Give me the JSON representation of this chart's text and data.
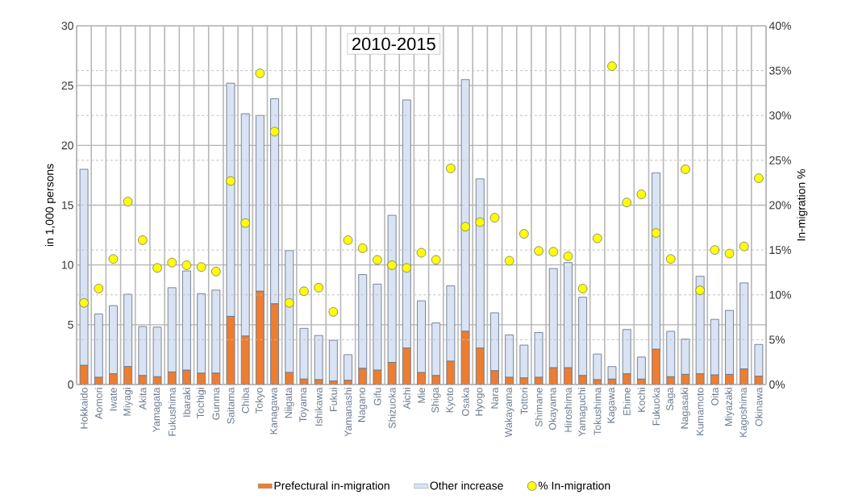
{
  "chart_data": {
    "type": "bar",
    "title": "2010-2015",
    "ylabel": "in 1,000 persons",
    "y2label": "In-migration %",
    "categories": [
      "Hokkaido",
      "Aomori",
      "Iwate",
      "Miyagi",
      "Akita",
      "Yamagata",
      "Fukushima",
      "Ibaraki",
      "Tochigi",
      "Gunma",
      "Saitama",
      "Chiba",
      "Tokyo",
      "Kanagawa",
      "Niigata",
      "Toyama",
      "Ishikawa",
      "Fukui",
      "Yamanashi",
      "Nagano",
      "Gifu",
      "Shizuoka",
      "Aichi",
      "Mie",
      "Shiga",
      "Kyoto",
      "Osaka",
      "Hyogo",
      "Nara",
      "Wakayama",
      "Tottori",
      "Shimane",
      "Okayama",
      "Hiroshima",
      "Yamaguchi",
      "Tokushima",
      "Kagawa",
      "Ehime",
      "Kochi",
      "Fukuoka",
      "Saga",
      "Nagasaki",
      "Kumamoto",
      "Oita",
      "Miyazaki",
      "Kagoshima",
      "Okinawa"
    ],
    "stacked": true,
    "series": [
      {
        "name": "Prefectural in-migration",
        "color": "#ed7d31",
        "values": [
          1.6,
          0.6,
          0.9,
          1.5,
          0.75,
          0.65,
          1.05,
          1.2,
          0.95,
          0.95,
          5.7,
          4.05,
          7.8,
          6.75,
          1.0,
          0.45,
          0.4,
          0.3,
          0.35,
          1.35,
          1.2,
          1.85,
          3.05,
          1.0,
          0.75,
          1.95,
          4.45,
          3.05,
          1.15,
          0.6,
          0.55,
          0.6,
          1.4,
          1.4,
          0.75,
          0.4,
          0.45,
          0.9,
          0.45,
          2.95,
          0.65,
          0.85,
          0.9,
          0.8,
          0.85,
          1.3,
          0.7
        ]
      },
      {
        "name": "Other increase",
        "color": "#dae3f3",
        "values": [
          16.4,
          5.3,
          5.7,
          6.05,
          4.1,
          4.15,
          7.05,
          8.3,
          6.65,
          6.95,
          19.5,
          18.6,
          14.7,
          17.15,
          10.2,
          4.25,
          3.7,
          3.4,
          2.15,
          7.85,
          7.2,
          12.3,
          20.75,
          6.0,
          4.4,
          6.3,
          21.05,
          14.15,
          4.85,
          3.55,
          2.75,
          3.75,
          8.3,
          8.8,
          6.55,
          2.15,
          1.05,
          3.7,
          1.85,
          14.75,
          3.8,
          2.95,
          8.15,
          4.65,
          5.35,
          7.2,
          2.65
        ]
      },
      {
        "name": "% In-migration",
        "type": "scatter",
        "axis": "y2",
        "color": "#ffff00",
        "values": [
          9.1,
          10.7,
          14.0,
          20.4,
          16.1,
          13.0,
          13.6,
          13.3,
          13.1,
          12.6,
          22.7,
          18.0,
          34.7,
          28.2,
          9.1,
          10.4,
          10.8,
          8.1,
          16.1,
          15.2,
          13.9,
          13.3,
          13.0,
          14.7,
          13.9,
          24.1,
          17.6,
          18.1,
          18.6,
          13.8,
          16.8,
          14.9,
          14.8,
          14.3,
          10.7,
          16.3,
          35.5,
          20.3,
          21.2,
          16.9,
          14.0,
          24.0,
          10.5,
          15.0,
          14.6,
          15.4,
          23.0
        ]
      }
    ],
    "ylim": [
      0,
      30
    ],
    "yticks": [
      0,
      5,
      10,
      15,
      20,
      25,
      30
    ],
    "y2lim": [
      0,
      40
    ],
    "y2ticks": [
      {
        "value": 0,
        "label": "0%"
      },
      {
        "value": 5,
        "label": "5%"
      },
      {
        "value": 10,
        "label": "10%"
      },
      {
        "value": 15,
        "label": "15%"
      },
      {
        "value": 20,
        "label": "20%"
      },
      {
        "value": 25,
        "label": "25%"
      },
      {
        "value": 30,
        "label": "30%"
      },
      {
        "value": 35,
        "label": "35%"
      },
      {
        "value": 40,
        "label": "40%"
      }
    ],
    "grid": true,
    "legend": "bottom"
  }
}
